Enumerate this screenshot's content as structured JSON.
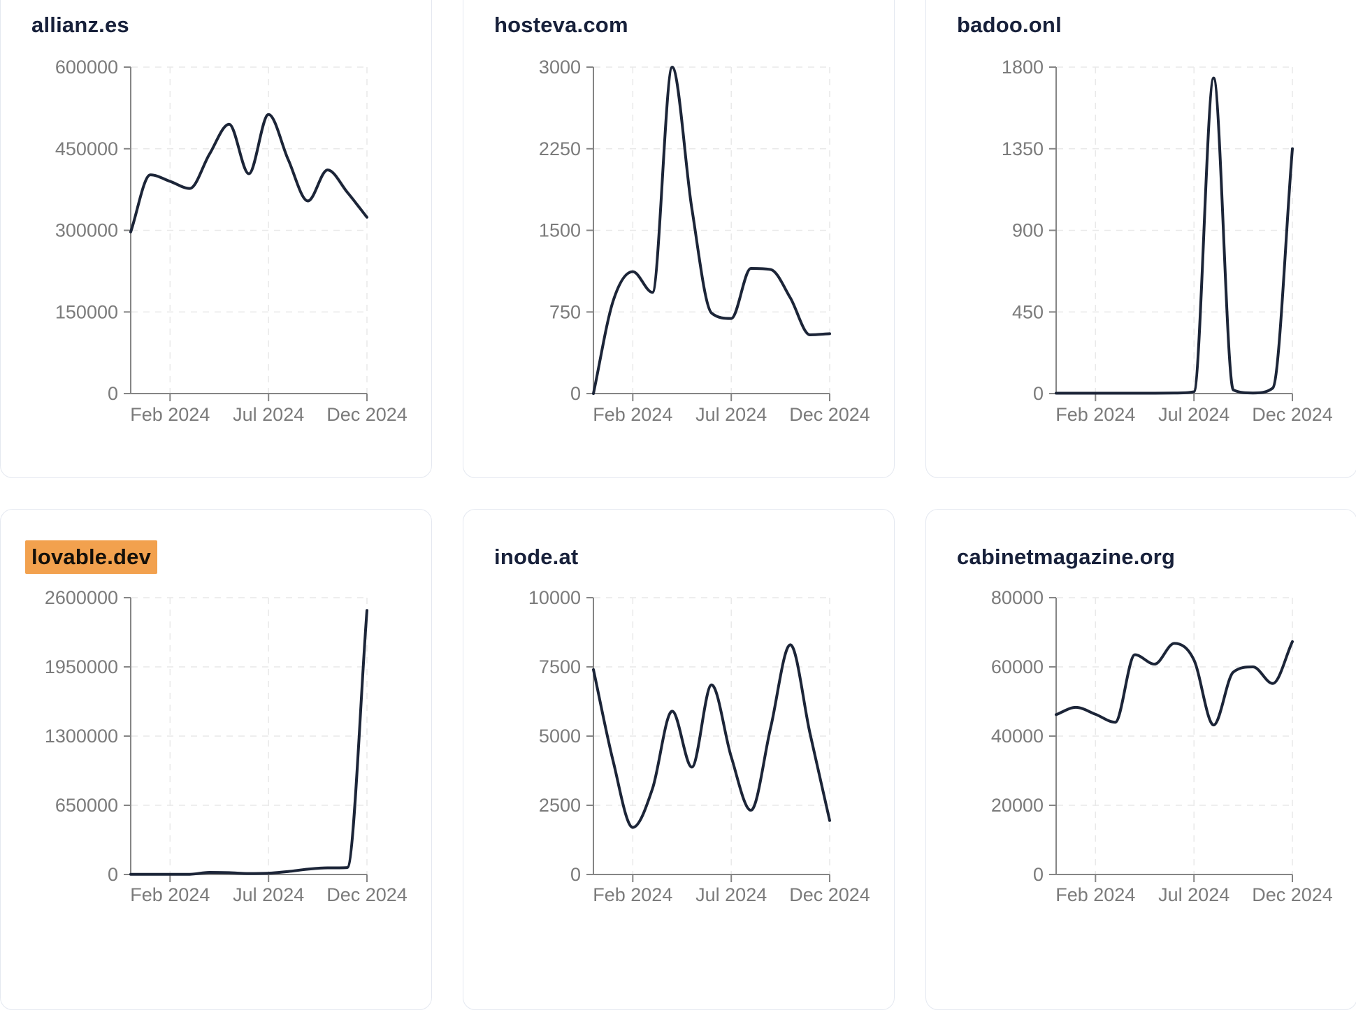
{
  "style": {
    "page_background": "#ffffff",
    "card_border_color": "#e4e8f0",
    "title_color": "#17203a",
    "line_color": "#1c2538",
    "axis_color": "#858585",
    "grid_color": "#e9e9e9",
    "tick_label_color": "#7b7b7b",
    "highlight_color": "#f2a14e"
  },
  "x_tick_labels": [
    "Feb 2024",
    "Jul 2024",
    "Dec 2024"
  ],
  "chart_data": [
    {
      "type": "line",
      "title": "allianz.es",
      "highlighted": false,
      "x": [
        "Dec 2023",
        "Jan 2024",
        "Feb 2024",
        "Mar 2024",
        "Apr 2024",
        "May 2024",
        "Jun 2024",
        "Jul 2024",
        "Aug 2024",
        "Sep 2024",
        "Oct 2024",
        "Nov 2024",
        "Dec 2024"
      ],
      "values": [
        297000,
        402000,
        390000,
        377000,
        440000,
        495000,
        404000,
        513000,
        430000,
        354000,
        411000,
        370000,
        324000
      ],
      "ylim": [
        0,
        600000
      ],
      "y_ticks": [
        0,
        150000,
        300000,
        450000,
        600000
      ],
      "x_tick_labels": [
        "Feb 2024",
        "Jul 2024",
        "Dec 2024"
      ],
      "x_tick_indices": [
        2,
        7,
        12
      ],
      "grid": true,
      "legend": "none"
    },
    {
      "type": "line",
      "title": "hosteva.com",
      "highlighted": false,
      "x": [
        "Dec 2023",
        "Jan 2024",
        "Feb 2024",
        "Mar 2024",
        "Apr 2024",
        "May 2024",
        "Jun 2024",
        "Jul 2024",
        "Aug 2024",
        "Sep 2024",
        "Oct 2024",
        "Nov 2024",
        "Dec 2024"
      ],
      "values": [
        0,
        850,
        1120,
        930,
        3000,
        1700,
        740,
        690,
        1150,
        1140,
        880,
        540,
        550
      ],
      "ylim": [
        0,
        3000
      ],
      "y_ticks": [
        0,
        750,
        1500,
        2250,
        3000
      ],
      "x_tick_labels": [
        "Feb 2024",
        "Jul 2024",
        "Dec 2024"
      ],
      "x_tick_indices": [
        2,
        7,
        12
      ],
      "grid": true,
      "legend": "none"
    },
    {
      "type": "line",
      "title": "badoo.onl",
      "highlighted": false,
      "x": [
        "Dec 2023",
        "Jan 2024",
        "Feb 2024",
        "Mar 2024",
        "Apr 2024",
        "May 2024",
        "Jun 2024",
        "Jul 2024",
        "Aug 2024",
        "Sep 2024",
        "Oct 2024",
        "Nov 2024",
        "Dec 2024"
      ],
      "values": [
        2,
        2,
        2,
        2,
        2,
        2,
        3,
        10,
        1740,
        20,
        3,
        30,
        1350
      ],
      "ylim": [
        0,
        1800
      ],
      "y_ticks": [
        0,
        450,
        900,
        1350,
        1800
      ],
      "x_tick_labels": [
        "Feb 2024",
        "Jul 2024",
        "Dec 2024"
      ],
      "x_tick_indices": [
        2,
        7,
        12
      ],
      "grid": true,
      "legend": "none"
    },
    {
      "type": "line",
      "title": "lovable.dev",
      "highlighted": true,
      "x": [
        "Dec 2023",
        "Jan 2024",
        "Feb 2024",
        "Mar 2024",
        "Apr 2024",
        "May 2024",
        "Jun 2024",
        "Jul 2024",
        "Aug 2024",
        "Sep 2024",
        "Oct 2024",
        "Nov 2024",
        "Dec 2024"
      ],
      "values": [
        2000,
        2000,
        1500,
        2000,
        20000,
        17000,
        9000,
        12000,
        28000,
        50000,
        62000,
        65000,
        2480000
      ],
      "ylim": [
        0,
        2600000
      ],
      "y_ticks": [
        0,
        650000,
        1300000,
        1950000,
        2600000
      ],
      "x_tick_labels": [
        "Feb 2024",
        "Jul 2024",
        "Dec 2024"
      ],
      "x_tick_indices": [
        2,
        7,
        12
      ],
      "grid": true,
      "legend": "none"
    },
    {
      "type": "line",
      "title": "inode.at",
      "highlighted": false,
      "x": [
        "Dec 2023",
        "Jan 2024",
        "Feb 2024",
        "Mar 2024",
        "Apr 2024",
        "May 2024",
        "Jun 2024",
        "Jul 2024",
        "Aug 2024",
        "Sep 2024",
        "Oct 2024",
        "Nov 2024",
        "Dec 2024"
      ],
      "values": [
        7400,
        4100,
        1700,
        3100,
        5900,
        3880,
        6850,
        4250,
        2320,
        5300,
        8300,
        5100,
        1950
      ],
      "ylim": [
        0,
        10000
      ],
      "y_ticks": [
        0,
        2500,
        5000,
        7500,
        10000
      ],
      "x_tick_labels": [
        "Feb 2024",
        "Jul 2024",
        "Dec 2024"
      ],
      "x_tick_indices": [
        2,
        7,
        12
      ],
      "grid": true,
      "legend": "none"
    },
    {
      "type": "line",
      "title": "cabinetmagazine.org",
      "highlighted": false,
      "x": [
        "Dec 2023",
        "Jan 2024",
        "Feb 2024",
        "Mar 2024",
        "Apr 2024",
        "May 2024",
        "Jun 2024",
        "Jul 2024",
        "Aug 2024",
        "Sep 2024",
        "Oct 2024",
        "Nov 2024",
        "Dec 2024"
      ],
      "values": [
        46200,
        48300,
        46300,
        44000,
        63500,
        60800,
        66800,
        62000,
        43200,
        58500,
        60000,
        55200,
        67300
      ],
      "ylim": [
        0,
        80000
      ],
      "y_ticks": [
        0,
        20000,
        40000,
        60000,
        80000
      ],
      "x_tick_labels": [
        "Feb 2024",
        "Jul 2024",
        "Dec 2024"
      ],
      "x_tick_indices": [
        2,
        7,
        12
      ],
      "grid": true,
      "legend": "none"
    }
  ]
}
